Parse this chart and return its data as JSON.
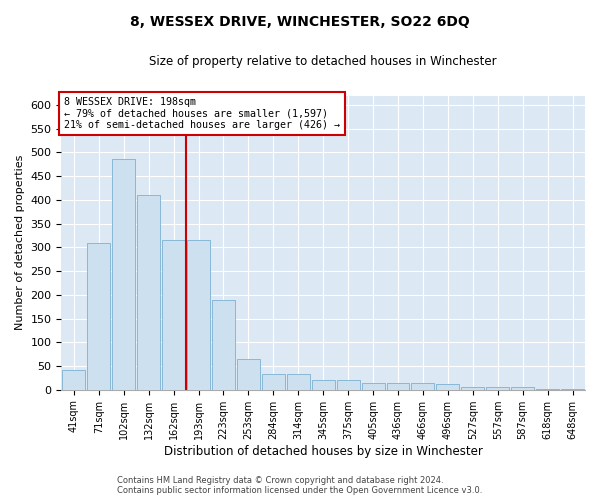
{
  "title": "8, WESSEX DRIVE, WINCHESTER, SO22 6DQ",
  "subtitle": "Size of property relative to detached houses in Winchester",
  "xlabel": "Distribution of detached houses by size in Winchester",
  "ylabel": "Number of detached properties",
  "bar_labels": [
    "41sqm",
    "71sqm",
    "102sqm",
    "132sqm",
    "162sqm",
    "193sqm",
    "223sqm",
    "253sqm",
    "284sqm",
    "314sqm",
    "345sqm",
    "375sqm",
    "405sqm",
    "436sqm",
    "466sqm",
    "496sqm",
    "527sqm",
    "557sqm",
    "587sqm",
    "618sqm",
    "648sqm"
  ],
  "bar_heights": [
    42,
    310,
    487,
    410,
    315,
    315,
    190,
    65,
    33,
    33,
    20,
    20,
    15,
    15,
    15,
    12,
    5,
    5,
    5,
    1,
    1
  ],
  "bar_color": "#cce0f0",
  "bar_edgecolor": "#88b8d8",
  "vline_color": "#cc0000",
  "annotation_line1": "8 WESSEX DRIVE: 198sqm",
  "annotation_line2": "← 79% of detached houses are smaller (1,597)",
  "annotation_line3": "21% of semi-detached houses are larger (426) →",
  "annotation_box_edgecolor": "#cc0000",
  "ylim": [
    0,
    620
  ],
  "yticks": [
    0,
    50,
    100,
    150,
    200,
    250,
    300,
    350,
    400,
    450,
    500,
    550,
    600
  ],
  "footer1": "Contains HM Land Registry data © Crown copyright and database right 2024.",
  "footer2": "Contains public sector information licensed under the Open Government Licence v3.0.",
  "plot_background": "#dce9f5"
}
